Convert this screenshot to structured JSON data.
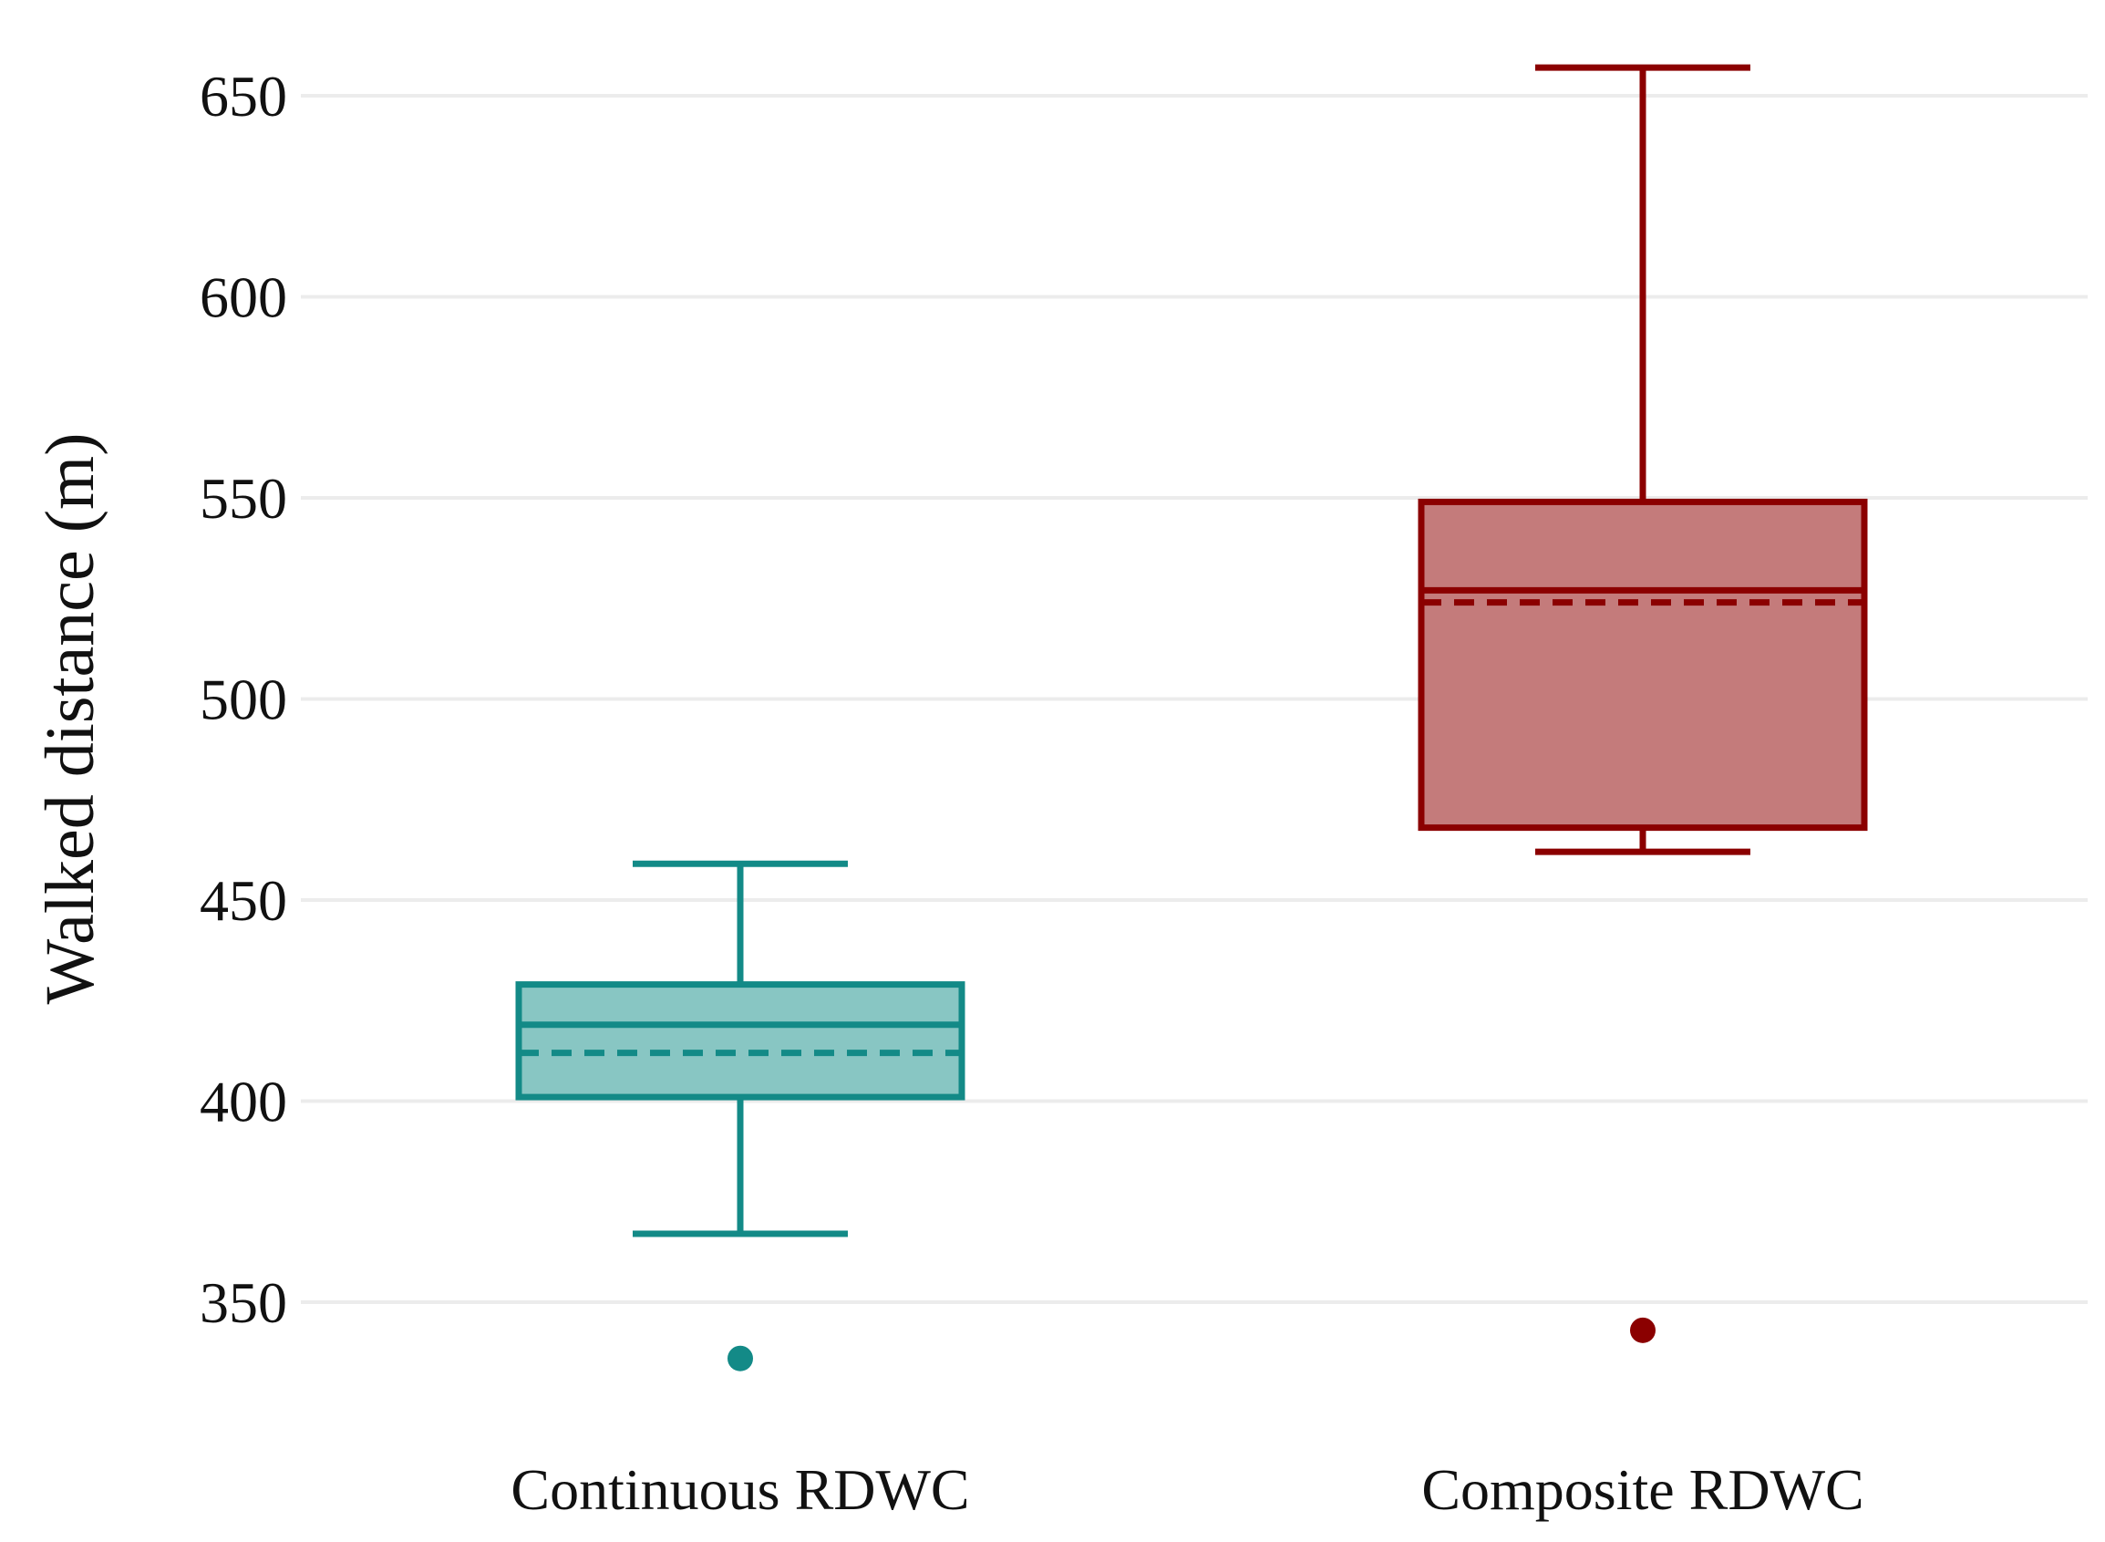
{
  "chart_data": {
    "type": "box",
    "title": "",
    "xlabel": "",
    "ylabel": "Walked distance (m)",
    "ylim": [
      325,
      662
    ],
    "yticks": [
      350,
      400,
      450,
      500,
      550,
      600,
      650
    ],
    "grid": true,
    "legend": "none",
    "categories": [
      "Continuous RDWC",
      "Composite RDWC"
    ],
    "series": [
      {
        "category": "Continuous RDWC",
        "color": "#138a87",
        "fill": "#88c6c3",
        "whisker_low": 367,
        "q1": 401,
        "median": 419,
        "mean": 412,
        "q3": 429,
        "whisker_high": 459,
        "outliers": [
          336
        ]
      },
      {
        "category": "Composite RDWC",
        "color": "#8b0000",
        "fill": "#c47b7b",
        "whisker_low": 462,
        "q1": 468,
        "median": 527,
        "mean": 524,
        "q3": 549,
        "whisker_high": 657,
        "outliers": [
          343
        ]
      }
    ]
  }
}
